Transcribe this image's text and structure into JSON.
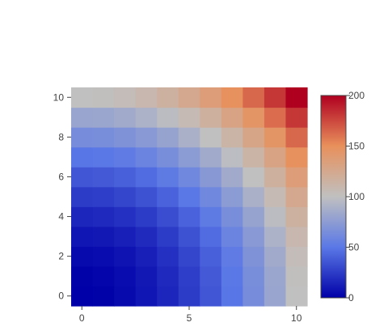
{
  "chart_data": {
    "type": "heatmap",
    "x": [
      0,
      1,
      2,
      3,
      4,
      5,
      6,
      7,
      8,
      9,
      10
    ],
    "y": [
      0,
      1,
      2,
      3,
      4,
      5,
      6,
      7,
      8,
      9,
      10
    ],
    "z": [
      [
        0,
        1,
        4,
        9,
        16,
        25,
        36,
        49,
        64,
        81,
        100
      ],
      [
        1,
        2,
        5,
        10,
        17,
        26,
        37,
        50,
        65,
        82,
        101
      ],
      [
        4,
        5,
        8,
        13,
        20,
        29,
        40,
        53,
        68,
        85,
        104
      ],
      [
        9,
        10,
        13,
        18,
        25,
        34,
        45,
        58,
        73,
        90,
        109
      ],
      [
        16,
        17,
        20,
        25,
        32,
        41,
        52,
        65,
        80,
        97,
        116
      ],
      [
        25,
        26,
        29,
        34,
        41,
        50,
        61,
        74,
        89,
        106,
        125
      ],
      [
        36,
        37,
        40,
        45,
        52,
        61,
        72,
        85,
        100,
        117,
        136
      ],
      [
        49,
        50,
        53,
        58,
        65,
        74,
        85,
        98,
        113,
        130,
        149
      ],
      [
        64,
        65,
        68,
        73,
        80,
        89,
        100,
        113,
        128,
        145,
        164
      ],
      [
        81,
        82,
        85,
        90,
        97,
        106,
        117,
        130,
        145,
        162,
        181
      ],
      [
        100,
        101,
        104,
        109,
        116,
        125,
        136,
        149,
        164,
        181,
        200
      ]
    ],
    "zmin": 0,
    "zmax": 200,
    "colorscale": [
      [
        0.0,
        "#0000a8"
      ],
      [
        0.25,
        "#5a78e6"
      ],
      [
        0.5,
        "#c0c0c0"
      ],
      [
        0.75,
        "#e8905c"
      ],
      [
        1.0,
        "#b00020"
      ]
    ],
    "x_ticks": [
      0,
      5,
      10
    ],
    "y_ticks": [
      0,
      2,
      4,
      6,
      8,
      10
    ],
    "colorbar_ticks": [
      0,
      50,
      100,
      150,
      200
    ],
    "xlim": [
      -0.5,
      10.5
    ],
    "ylim": [
      -0.5,
      10.5
    ],
    "grid": false,
    "legend": "colorbar-right",
    "title": "",
    "xlabel": "",
    "ylabel": ""
  }
}
